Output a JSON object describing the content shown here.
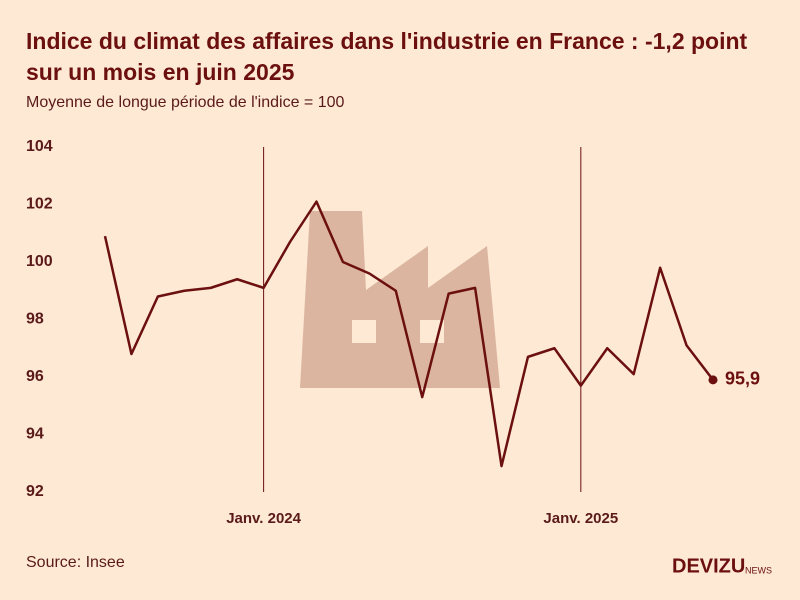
{
  "chart_data": {
    "type": "line",
    "title": "Indice du climat des affaires dans l'industrie en France : -1,2 point sur un mois en juin 2025",
    "subtitle": "Moyenne de longue période de l'indice = 100",
    "source": "Source: Insee",
    "brand": "DEVIZU",
    "brand_suffix": "NEWS",
    "categories": [
      null,
      null,
      null,
      null,
      null,
      null,
      "Janv. 2024",
      null,
      null,
      null,
      null,
      null,
      null,
      null,
      null,
      null,
      null,
      null,
      "Janv. 2025",
      null,
      null,
      null,
      null,
      null
    ],
    "values": [
      100.9,
      96.8,
      98.8,
      99.0,
      99.1,
      99.4,
      99.1,
      100.7,
      102.1,
      100.0,
      99.6,
      99.0,
      95.3,
      98.9,
      99.1,
      92.9,
      96.7,
      97.0,
      95.7,
      97.0,
      96.1,
      99.8,
      97.1,
      95.9
    ],
    "value_labels": [
      null,
      null,
      null,
      null,
      null,
      null,
      null,
      null,
      null,
      null,
      null,
      null,
      null,
      null,
      null,
      null,
      null,
      null,
      null,
      null,
      null,
      null,
      null,
      "95,9"
    ],
    "color": "#6b0f0f",
    "ylim": [
      92,
      104
    ],
    "yticks": [
      92,
      94,
      96,
      98,
      100,
      102,
      104
    ]
  }
}
